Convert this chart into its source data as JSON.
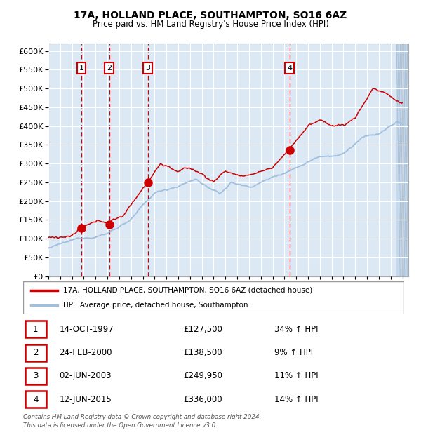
{
  "title": "17A, HOLLAND PLACE, SOUTHAMPTON, SO16 6AZ",
  "subtitle": "Price paid vs. HM Land Registry's House Price Index (HPI)",
  "legend_line1": "17A, HOLLAND PLACE, SOUTHAMPTON, SO16 6AZ (detached house)",
  "legend_line2": "HPI: Average price, detached house, Southampton",
  "footer": "Contains HM Land Registry data © Crown copyright and database right 2024.\nThis data is licensed under the Open Government Licence v3.0.",
  "transactions": [
    {
      "num": 1,
      "date": "14-OCT-1997",
      "price": 127500,
      "pct": "34%",
      "year": 1997.79
    },
    {
      "num": 2,
      "date": "24-FEB-2000",
      "price": 138500,
      "pct": "9%",
      "year": 2000.15
    },
    {
      "num": 3,
      "date": "02-JUN-2003",
      "price": 249950,
      "pct": "11%",
      "year": 2003.42
    },
    {
      "num": 4,
      "date": "12-JUN-2015",
      "price": 336000,
      "pct": "14%",
      "year": 2015.44
    }
  ],
  "ylim": [
    0,
    620000
  ],
  "yticks": [
    0,
    50000,
    100000,
    150000,
    200000,
    250000,
    300000,
    350000,
    400000,
    450000,
    500000,
    550000,
    600000
  ],
  "xlim_start": 1995.0,
  "xlim_end": 2025.5,
  "hpi_color": "#a0bedd",
  "price_color": "#cc0000",
  "plot_bg": "#dce9f5",
  "grid_color": "#ffffff",
  "dashed_color": "#cc0000",
  "box_color": "#cc0000"
}
